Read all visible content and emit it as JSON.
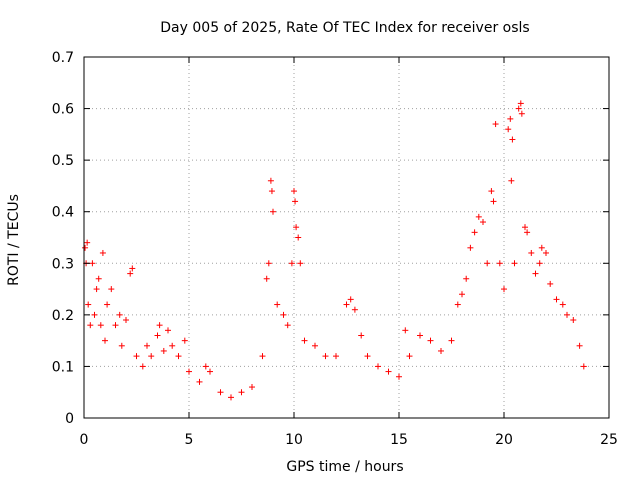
{
  "chart_data": {
    "type": "scatter",
    "title": "Day 005 of 2025, Rate Of TEC Index for receiver osls",
    "xlabel": "GPS time / hours",
    "ylabel": "ROTI / TECUs",
    "xlim": [
      0,
      25
    ],
    "ylim": [
      0,
      0.7
    ],
    "x_ticks": [
      0,
      5,
      10,
      15,
      20,
      25
    ],
    "x_tick_labels": [
      "0",
      "5",
      "10",
      "15",
      "20",
      "25"
    ],
    "y_ticks": [
      0,
      0.1,
      0.2,
      0.3,
      0.4,
      0.5,
      0.6,
      0.7
    ],
    "y_tick_labels": [
      "0",
      "0.1",
      "0.2",
      "0.3",
      "0.4",
      "0.5",
      "0.6",
      "0.7"
    ],
    "grid": true,
    "marker": "plus",
    "color": "#ff0000",
    "series": [
      {
        "points": [
          [
            0.05,
            0.33
          ],
          [
            0.1,
            0.3
          ],
          [
            0.15,
            0.34
          ],
          [
            0.2,
            0.22
          ],
          [
            0.3,
            0.18
          ],
          [
            0.4,
            0.3
          ],
          [
            0.5,
            0.2
          ],
          [
            0.6,
            0.25
          ],
          [
            0.7,
            0.27
          ],
          [
            0.8,
            0.18
          ],
          [
            0.9,
            0.32
          ],
          [
            1.0,
            0.15
          ],
          [
            1.1,
            0.22
          ],
          [
            1.3,
            0.25
          ],
          [
            1.5,
            0.18
          ],
          [
            1.7,
            0.2
          ],
          [
            1.8,
            0.14
          ],
          [
            2.0,
            0.19
          ],
          [
            2.2,
            0.28
          ],
          [
            2.3,
            0.29
          ],
          [
            2.5,
            0.12
          ],
          [
            2.8,
            0.1
          ],
          [
            3.0,
            0.14
          ],
          [
            3.2,
            0.12
          ],
          [
            3.5,
            0.16
          ],
          [
            3.6,
            0.18
          ],
          [
            3.8,
            0.13
          ],
          [
            4.0,
            0.17
          ],
          [
            4.2,
            0.14
          ],
          [
            4.5,
            0.12
          ],
          [
            4.8,
            0.15
          ],
          [
            5.0,
            0.09
          ],
          [
            5.5,
            0.07
          ],
          [
            5.8,
            0.1
          ],
          [
            6.0,
            0.09
          ],
          [
            6.5,
            0.05
          ],
          [
            7.0,
            0.04
          ],
          [
            7.5,
            0.05
          ],
          [
            8.0,
            0.06
          ],
          [
            8.5,
            0.12
          ],
          [
            8.7,
            0.27
          ],
          [
            8.8,
            0.3
          ],
          [
            8.9,
            0.46
          ],
          [
            8.95,
            0.44
          ],
          [
            9.0,
            0.4
          ],
          [
            9.2,
            0.22
          ],
          [
            9.5,
            0.2
          ],
          [
            9.7,
            0.18
          ],
          [
            9.9,
            0.3
          ],
          [
            10.0,
            0.44
          ],
          [
            10.05,
            0.42
          ],
          [
            10.1,
            0.37
          ],
          [
            10.2,
            0.35
          ],
          [
            10.3,
            0.3
          ],
          [
            10.5,
            0.15
          ],
          [
            11.0,
            0.14
          ],
          [
            11.5,
            0.12
          ],
          [
            12.0,
            0.12
          ],
          [
            12.5,
            0.22
          ],
          [
            12.7,
            0.23
          ],
          [
            12.9,
            0.21
          ],
          [
            13.2,
            0.16
          ],
          [
            13.5,
            0.12
          ],
          [
            14.0,
            0.1
          ],
          [
            14.5,
            0.09
          ],
          [
            15.0,
            0.08
          ],
          [
            15.3,
            0.17
          ],
          [
            15.5,
            0.12
          ],
          [
            16.0,
            0.16
          ],
          [
            16.5,
            0.15
          ],
          [
            17.0,
            0.13
          ],
          [
            17.5,
            0.15
          ],
          [
            17.8,
            0.22
          ],
          [
            18.0,
            0.24
          ],
          [
            18.2,
            0.27
          ],
          [
            18.4,
            0.33
          ],
          [
            18.6,
            0.36
          ],
          [
            18.8,
            0.39
          ],
          [
            19.0,
            0.38
          ],
          [
            19.2,
            0.3
          ],
          [
            19.4,
            0.44
          ],
          [
            19.5,
            0.42
          ],
          [
            19.6,
            0.57
          ],
          [
            19.8,
            0.3
          ],
          [
            20.0,
            0.25
          ],
          [
            20.2,
            0.56
          ],
          [
            20.3,
            0.58
          ],
          [
            20.35,
            0.46
          ],
          [
            20.4,
            0.54
          ],
          [
            20.5,
            0.3
          ],
          [
            20.7,
            0.6
          ],
          [
            20.8,
            0.61
          ],
          [
            20.85,
            0.59
          ],
          [
            21.0,
            0.37
          ],
          [
            21.1,
            0.36
          ],
          [
            21.3,
            0.32
          ],
          [
            21.5,
            0.28
          ],
          [
            21.7,
            0.3
          ],
          [
            21.8,
            0.33
          ],
          [
            22.0,
            0.32
          ],
          [
            22.2,
            0.26
          ],
          [
            22.5,
            0.23
          ],
          [
            22.8,
            0.22
          ],
          [
            23.0,
            0.2
          ],
          [
            23.3,
            0.19
          ],
          [
            23.6,
            0.14
          ],
          [
            23.8,
            0.1
          ]
        ]
      }
    ]
  }
}
